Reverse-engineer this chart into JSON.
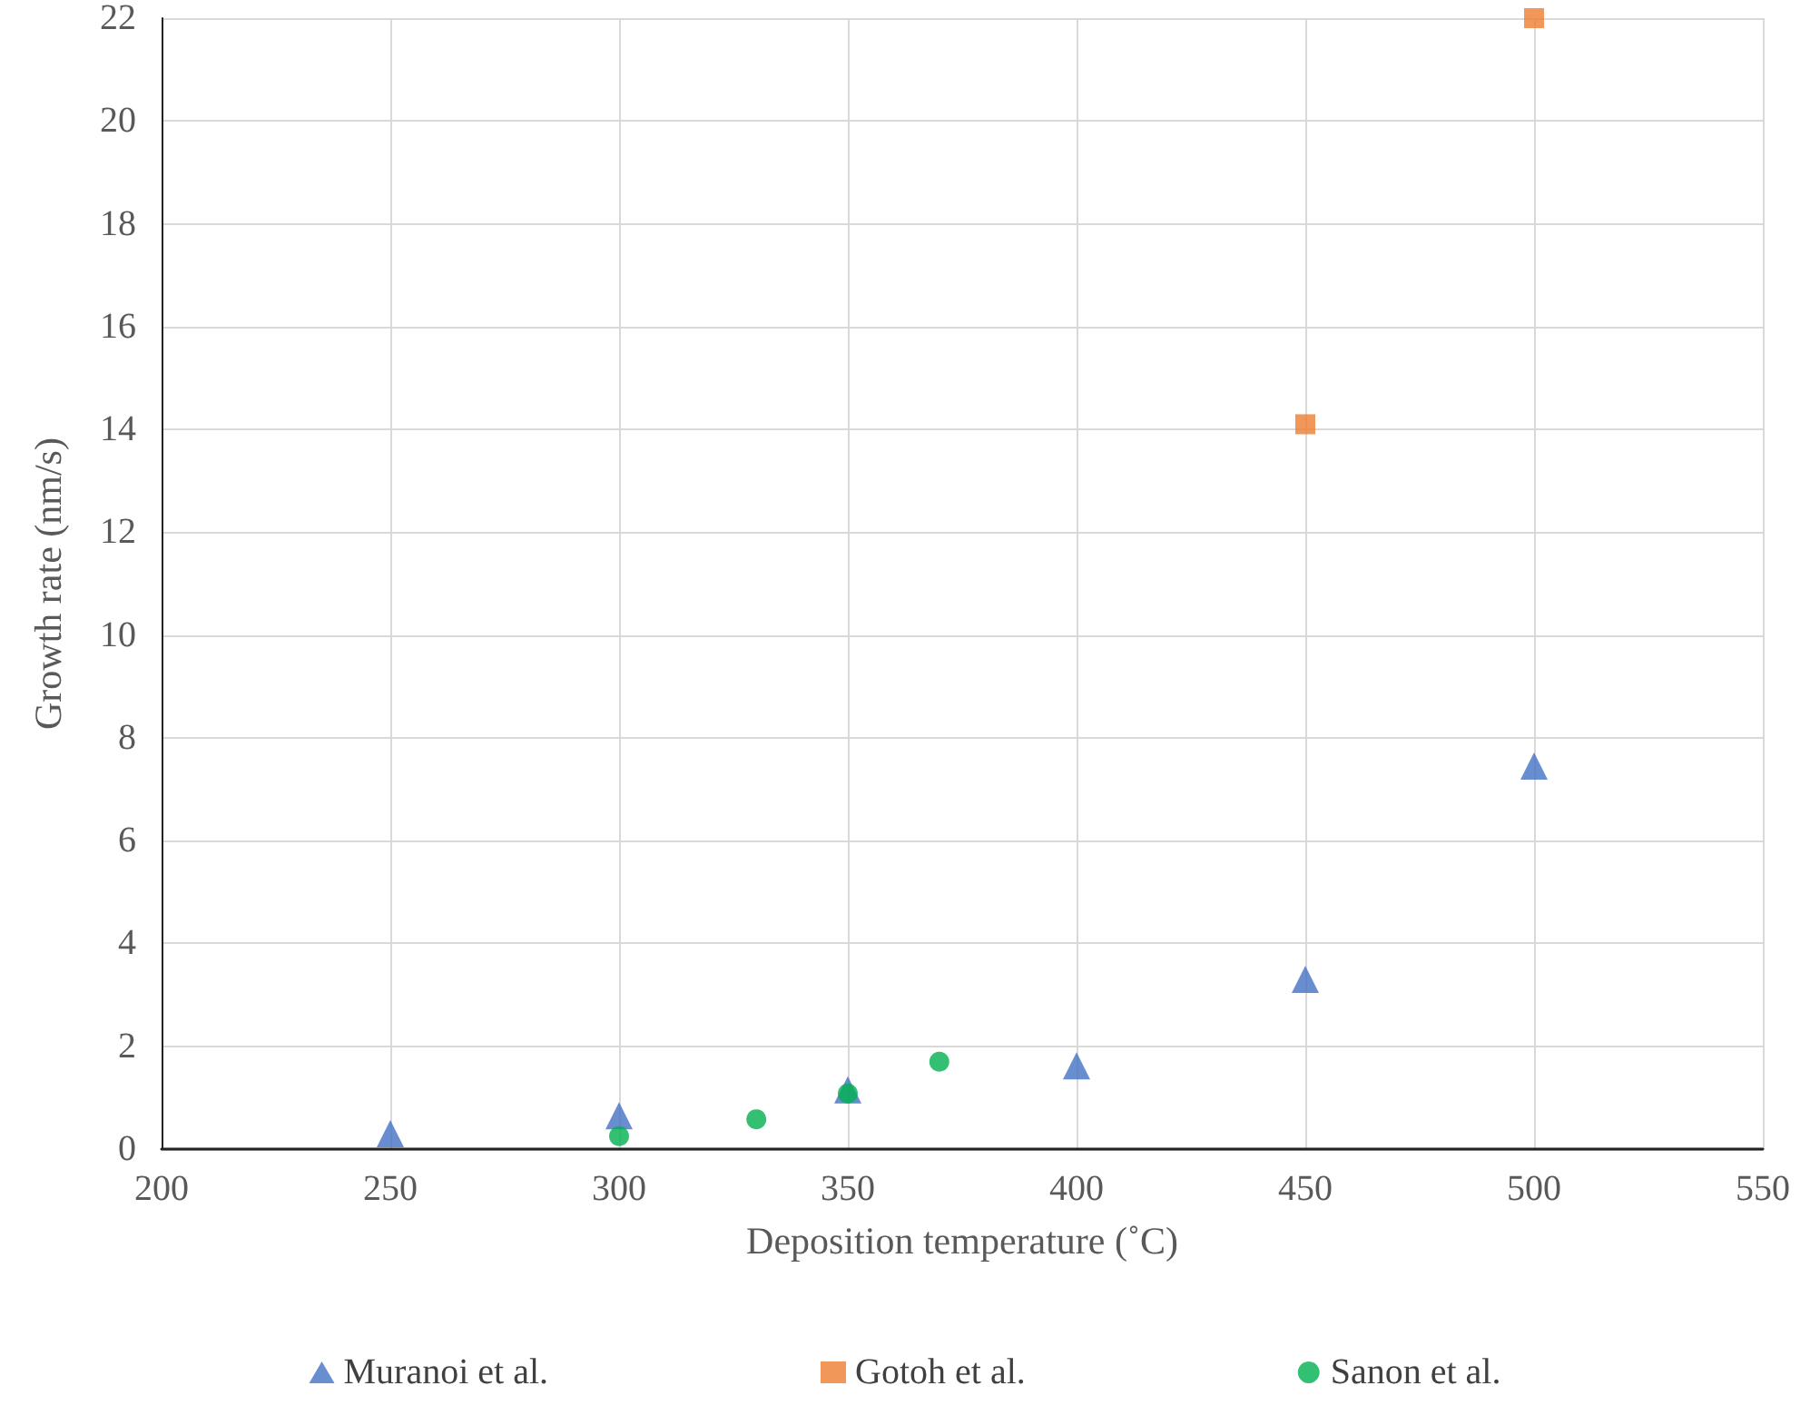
{
  "chart_data": {
    "type": "scatter",
    "xlabel": "Deposition temperature (˚C)",
    "ylabel": "Growth rate (nm/s)",
    "xlim": [
      200,
      550
    ],
    "xticks": [
      200,
      250,
      300,
      350,
      400,
      450,
      500,
      550
    ],
    "ylim": [
      0,
      22
    ],
    "yticks": [
      0,
      2,
      4,
      6,
      8,
      10,
      12,
      14,
      16,
      18,
      20,
      22
    ],
    "grid": true,
    "legend": "bottom",
    "series": [
      {
        "name": "Muranoi et al.",
        "color": "#4472c4",
        "marker": "triangle",
        "x": [
          250,
          300,
          350,
          400,
          450,
          500
        ],
        "values": [
          0.3,
          0.65,
          1.15,
          1.62,
          3.3,
          7.45
        ]
      },
      {
        "name": "Gotoh et al.",
        "color": "#ed7d31",
        "marker": "square",
        "x": [
          450,
          500
        ],
        "values": [
          14.1,
          22
        ]
      },
      {
        "name": "Sanon et al.",
        "color": "#00b050",
        "marker": "circle",
        "x": [
          300,
          330,
          350,
          370
        ],
        "values": [
          0.25,
          0.58,
          1.08,
          1.7
        ]
      }
    ]
  }
}
